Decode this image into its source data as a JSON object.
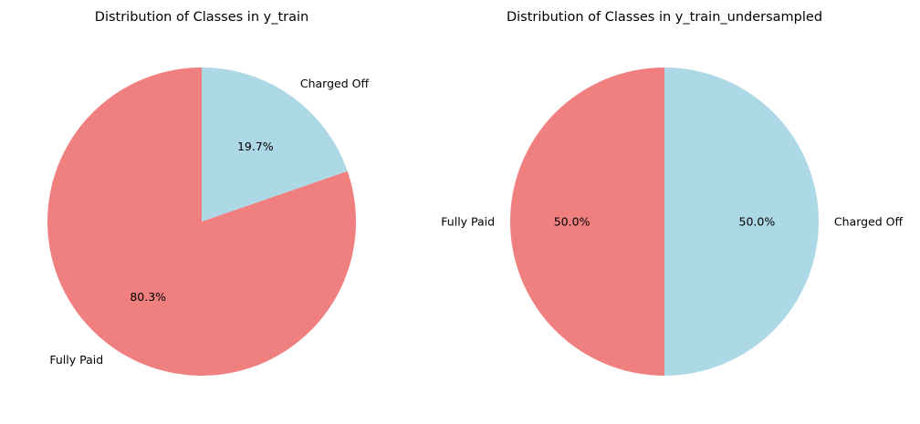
{
  "chart_data": [
    {
      "type": "pie",
      "title": "Distribution of Classes in y_train",
      "slices": [
        {
          "label": "Charged Off",
          "value": 19.7,
          "pct_label": "19.7%",
          "color": "#add8e6"
        },
        {
          "label": "Fully Paid",
          "value": 80.3,
          "pct_label": "80.3%",
          "color": "#f08080"
        }
      ],
      "start_angle_deg": 90,
      "direction": "clockwise"
    },
    {
      "type": "pie",
      "title": "Distribution of Classes in y_train_undersampled",
      "slices": [
        {
          "label": "Charged Off",
          "value": 50.0,
          "pct_label": "50.0%",
          "color": "#add8e6"
        },
        {
          "label": "Fully Paid",
          "value": 50.0,
          "pct_label": "50.0%",
          "color": "#f08080"
        }
      ],
      "start_angle_deg": 90,
      "direction": "clockwise"
    }
  ]
}
